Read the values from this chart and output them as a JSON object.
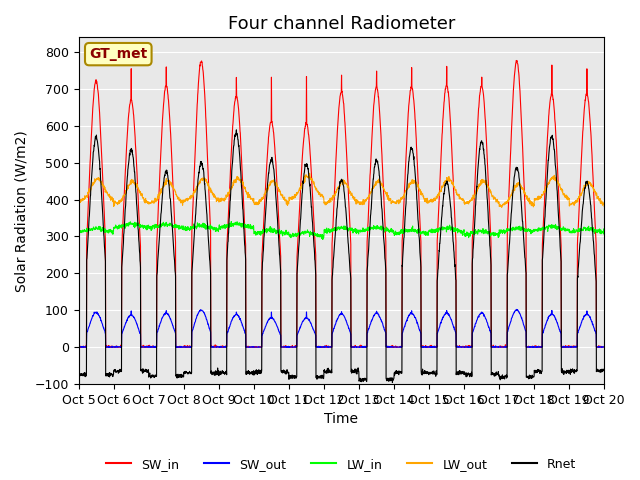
{
  "title": "Four channel Radiometer",
  "xlabel": "Time",
  "ylabel": "Solar Radiation (W/m2)",
  "ylim": [
    -100,
    840
  ],
  "yticks": [
    -100,
    0,
    100,
    200,
    300,
    400,
    500,
    600,
    700,
    800
  ],
  "x_tick_labels": [
    "Oct 5",
    "Oct 6",
    "Oct 7",
    "Oct 8",
    "Oct 9",
    "Oct 10",
    "Oct 11",
    "Oct 12",
    "Oct 13",
    "Oct 14",
    "Oct 15",
    "Oct 16",
    "Oct 17",
    "Oct 18",
    "Oct 19",
    "Oct 20"
  ],
  "colors": {
    "SW_in": "#FF0000",
    "SW_out": "#0000FF",
    "LW_in": "#00FF00",
    "LW_out": "#FFA500",
    "Rnet": "#000000"
  },
  "annotation_text": "GT_met",
  "annotation_bbox_facecolor": "#FFFFC0",
  "annotation_bbox_edgecolor": "#AA8800",
  "background_color": "#E8E8E8",
  "n_days": 15,
  "points_per_day": 144,
  "SW_in_peak": 760,
  "LW_in_base": 315,
  "LW_out_base": 390,
  "LW_out_amp": 60,
  "Rnet_day_peak": 560,
  "Rnet_night": -80,
  "title_fontsize": 13,
  "label_fontsize": 10,
  "tick_fontsize": 9
}
